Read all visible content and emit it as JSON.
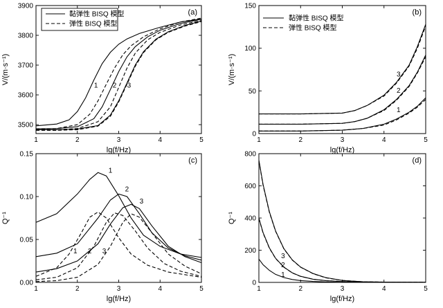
{
  "figure": {
    "width_note": "four-panel figure",
    "panels": [
      "a",
      "b",
      "c",
      "d"
    ]
  },
  "legend": {
    "viscoelastic": "黏弹性 BISQ 模型",
    "elastic": "弹性 BISQ 模型"
  },
  "chart_data": [
    {
      "id": "a",
      "type": "line",
      "panel_label": "(a)",
      "xlabel": "lg(f/Hz)",
      "ylabel": "V/(m·s⁻¹)",
      "xlim": [
        1,
        5
      ],
      "ylim": [
        3470,
        3900
      ],
      "xticks": [
        1,
        2,
        3,
        4,
        5
      ],
      "yticks": [
        3500,
        3600,
        3700,
        3800,
        3900
      ],
      "legend_position": "top-left",
      "curve_labels": [
        {
          "text": "1",
          "x": 2.45,
          "y": 3625
        },
        {
          "text": "2",
          "x": 2.9,
          "y": 3625
        },
        {
          "text": "3",
          "x": 3.25,
          "y": 3625
        }
      ],
      "series": [
        {
          "name": "黏弹性 BISQ 模型",
          "curve": "1",
          "style": "solid",
          "x": [
            1,
            1.5,
            1.8,
            2.0,
            2.2,
            2.4,
            2.6,
            2.8,
            3.0,
            3.2,
            3.5,
            4.0,
            4.5,
            5.0
          ],
          "y": [
            3496,
            3502,
            3516,
            3544,
            3590,
            3650,
            3705,
            3743,
            3770,
            3788,
            3806,
            3827,
            3845,
            3855
          ]
        },
        {
          "name": "弹性 BISQ 模型",
          "curve": "1",
          "style": "dashed",
          "x": [
            1,
            1.5,
            2.0,
            2.3,
            2.5,
            2.7,
            2.9,
            3.1,
            3.3,
            3.6,
            4.0,
            4.5,
            5.0
          ],
          "y": [
            3484,
            3487,
            3500,
            3535,
            3580,
            3636,
            3690,
            3735,
            3765,
            3795,
            3822,
            3845,
            3858
          ]
        },
        {
          "name": "黏弹性 BISQ 模型",
          "curve": "2",
          "style": "solid",
          "x": [
            1,
            1.5,
            2.0,
            2.4,
            2.6,
            2.8,
            3.0,
            3.2,
            3.4,
            3.7,
            4.0,
            4.5,
            5.0
          ],
          "y": [
            3486,
            3487,
            3493,
            3520,
            3560,
            3618,
            3678,
            3728,
            3762,
            3795,
            3817,
            3840,
            3854
          ]
        },
        {
          "name": "弹性 BISQ 模型",
          "curve": "2",
          "style": "dashed",
          "x": [
            1,
            1.5,
            2.0,
            2.5,
            2.8,
            3.0,
            3.2,
            3.4,
            3.7,
            4.0,
            4.5,
            5.0
          ],
          "y": [
            3482,
            3483,
            3487,
            3510,
            3560,
            3625,
            3690,
            3740,
            3785,
            3810,
            3835,
            3850
          ]
        },
        {
          "name": "黏弹性 BISQ 模型",
          "curve": "3",
          "style": "solid",
          "x": [
            1,
            1.5,
            2.0,
            2.5,
            2.8,
            3.0,
            3.2,
            3.4,
            3.6,
            3.9,
            4.2,
            4.6,
            5.0
          ],
          "y": [
            3483,
            3483,
            3485,
            3497,
            3532,
            3580,
            3640,
            3700,
            3745,
            3787,
            3812,
            3833,
            3848
          ]
        },
        {
          "name": "弹性 BISQ 模型",
          "curve": "3",
          "style": "dashed",
          "x": [
            1,
            1.5,
            2.0,
            2.5,
            2.8,
            3.0,
            3.2,
            3.4,
            3.6,
            3.9,
            4.2,
            4.6,
            5.0
          ],
          "y": [
            3481,
            3481,
            3483,
            3495,
            3528,
            3576,
            3636,
            3696,
            3742,
            3785,
            3810,
            3831,
            3846
          ]
        }
      ]
    },
    {
      "id": "b",
      "type": "line",
      "panel_label": "(b)",
      "xlabel": "lg(f/Hz)",
      "ylabel": "V/(m·s⁻¹)",
      "xlim": [
        1,
        5
      ],
      "ylim": [
        0,
        150
      ],
      "xticks": [
        1,
        2,
        3,
        4,
        5
      ],
      "yticks": [
        0,
        50,
        100,
        150
      ],
      "legend_position": "top-left",
      "curve_labels": [
        {
          "text": "1",
          "x": 4.35,
          "y": 25
        },
        {
          "text": "2",
          "x": 4.35,
          "y": 48
        },
        {
          "text": "3",
          "x": 4.35,
          "y": 67
        }
      ],
      "series": [
        {
          "name": "黏弹性 BISQ 模型",
          "curve": "1",
          "style": "solid",
          "x": [
            1,
            2,
            3,
            3.5,
            4.0,
            4.3,
            4.6,
            4.8,
            5.0
          ],
          "y": [
            3,
            3,
            4,
            6,
            11,
            17,
            25,
            32,
            42
          ]
        },
        {
          "name": "弹性 BISQ 模型",
          "curve": "1",
          "style": "dashed",
          "x": [
            1,
            2,
            3,
            3.5,
            4.0,
            4.3,
            4.6,
            4.8,
            5.0
          ],
          "y": [
            3,
            3,
            4,
            6,
            10,
            16,
            24,
            31,
            40
          ]
        },
        {
          "name": "黏弹性 BISQ 模型",
          "curve": "2",
          "style": "solid",
          "x": [
            1,
            2,
            3,
            3.3,
            3.6,
            4.0,
            4.3,
            4.6,
            4.8,
            5.0
          ],
          "y": [
            11,
            11,
            12,
            14,
            18,
            28,
            40,
            56,
            72,
            92
          ]
        },
        {
          "name": "弹性 BISQ 模型",
          "curve": "2",
          "style": "dashed",
          "x": [
            1,
            2,
            3,
            3.3,
            3.6,
            4.0,
            4.3,
            4.6,
            4.8,
            5.0
          ],
          "y": [
            11,
            11,
            12,
            14,
            18,
            27,
            39,
            55,
            71,
            90
          ]
        },
        {
          "name": "黏弹性 BISQ 模型",
          "curve": "3",
          "style": "solid",
          "x": [
            1,
            2,
            3,
            3.3,
            3.6,
            4.0,
            4.3,
            4.6,
            4.8,
            5.0
          ],
          "y": [
            23,
            23,
            24,
            27,
            33,
            45,
            60,
            80,
            102,
            128
          ]
        },
        {
          "name": "弹性 BISQ 模型",
          "curve": "3",
          "style": "dashed",
          "x": [
            1,
            2,
            3,
            3.3,
            3.6,
            4.0,
            4.3,
            4.6,
            4.8,
            5.0
          ],
          "y": [
            23,
            23,
            24,
            27,
            33,
            44,
            59,
            79,
            100,
            126
          ]
        }
      ]
    },
    {
      "id": "c",
      "type": "line",
      "panel_label": "(c)",
      "xlabel": "lg(f/Hz)",
      "ylabel": "Q⁻¹",
      "xlim": [
        1,
        5
      ],
      "ylim": [
        0,
        0.15
      ],
      "xticks": [
        1,
        2,
        3,
        4,
        5
      ],
      "yticks": [
        0.0,
        0.05,
        0.1,
        0.15
      ],
      "ytick_labels": [
        "0.00",
        "0.05",
        "0.10",
        "0.15"
      ],
      "curve_labels": [
        {
          "text": "1",
          "x": 2.8,
          "y": 0.128
        },
        {
          "text": "2",
          "x": 3.2,
          "y": 0.106
        },
        {
          "text": "3",
          "x": 3.55,
          "y": 0.092
        },
        {
          "text": "1",
          "x": 1.95,
          "y": 0.034
        },
        {
          "text": "2",
          "x": 2.3,
          "y": 0.034
        },
        {
          "text": "3",
          "x": 2.65,
          "y": 0.034
        }
      ],
      "series": [
        {
          "name": "黏弹性 BISQ 模型",
          "curve": "1",
          "style": "solid",
          "x": [
            1,
            1.5,
            2.0,
            2.3,
            2.5,
            2.7,
            3.0,
            3.3,
            3.6,
            4.0,
            4.5,
            5.0
          ],
          "y": [
            0.07,
            0.08,
            0.103,
            0.12,
            0.128,
            0.124,
            0.101,
            0.075,
            0.055,
            0.042,
            0.033,
            0.029
          ]
        },
        {
          "name": "黏弹性 BISQ 模型",
          "curve": "2",
          "style": "solid",
          "x": [
            1,
            1.5,
            2.0,
            2.5,
            2.8,
            3.0,
            3.2,
            3.5,
            3.8,
            4.2,
            4.6,
            5.0
          ],
          "y": [
            0.03,
            0.034,
            0.045,
            0.075,
            0.096,
            0.103,
            0.1,
            0.08,
            0.058,
            0.04,
            0.031,
            0.026
          ]
        },
        {
          "name": "黏弹性 BISQ 模型",
          "curve": "3",
          "style": "solid",
          "x": [
            1,
            1.5,
            2.0,
            2.5,
            2.8,
            3.1,
            3.3,
            3.5,
            3.8,
            4.2,
            4.6,
            5.0
          ],
          "y": [
            0.012,
            0.016,
            0.025,
            0.045,
            0.068,
            0.087,
            0.091,
            0.086,
            0.066,
            0.042,
            0.03,
            0.023
          ]
        },
        {
          "name": "弹性 BISQ 模型",
          "curve": "1",
          "style": "dashed",
          "x": [
            1,
            1.5,
            1.8,
            2.1,
            2.3,
            2.5,
            2.7,
            3.0,
            3.3,
            3.7,
            4.2,
            5.0
          ],
          "y": [
            0.007,
            0.017,
            0.033,
            0.058,
            0.076,
            0.082,
            0.075,
            0.052,
            0.033,
            0.02,
            0.012,
            0.006
          ]
        },
        {
          "name": "弹性 BISQ 模型",
          "curve": "2",
          "style": "dashed",
          "x": [
            1,
            1.5,
            2.0,
            2.4,
            2.7,
            2.9,
            3.1,
            3.4,
            3.7,
            4.1,
            4.5,
            5.0
          ],
          "y": [
            0.003,
            0.006,
            0.017,
            0.042,
            0.07,
            0.081,
            0.078,
            0.06,
            0.04,
            0.022,
            0.013,
            0.007
          ]
        },
        {
          "name": "弹性 BISQ 模型",
          "curve": "3",
          "style": "dashed",
          "x": [
            1,
            1.5,
            2.0,
            2.5,
            2.8,
            3.1,
            3.3,
            3.5,
            3.8,
            4.2,
            4.6,
            5.0
          ],
          "y": [
            0.001,
            0.002,
            0.006,
            0.021,
            0.042,
            0.07,
            0.08,
            0.076,
            0.058,
            0.033,
            0.019,
            0.01
          ]
        }
      ]
    },
    {
      "id": "d",
      "type": "line",
      "panel_label": "(d)",
      "xlabel": "lg(f/Hz)",
      "ylabel": "Q⁻¹",
      "xlim": [
        1,
        5
      ],
      "ylim": [
        0,
        800
      ],
      "xticks": [
        1,
        2,
        3,
        4,
        5
      ],
      "yticks": [
        0,
        200,
        400,
        600,
        800
      ],
      "curve_labels": [
        {
          "text": "3",
          "x": 1.58,
          "y": 150
        },
        {
          "text": "2",
          "x": 1.58,
          "y": 95
        },
        {
          "text": "1",
          "x": 1.58,
          "y": 35
        }
      ],
      "series": [
        {
          "name": "黏弹性 BISQ 模型",
          "curve": "3",
          "style": "solid",
          "x": [
            1.0,
            1.1,
            1.25,
            1.4,
            1.6,
            1.8,
            2.0,
            2.3,
            2.6,
            3.0,
            3.5,
            4.0,
            5.0
          ],
          "y": [
            760,
            610,
            440,
            320,
            210,
            140,
            95,
            55,
            30,
            12,
            4,
            2,
            1
          ]
        },
        {
          "name": "黏弹性 BISQ 模型",
          "curve": "2",
          "style": "solid",
          "x": [
            1.0,
            1.1,
            1.25,
            1.4,
            1.6,
            1.8,
            2.0,
            2.3,
            2.6,
            3.0,
            3.5,
            4.0,
            5.0
          ],
          "y": [
            400,
            310,
            215,
            150,
            95,
            60,
            38,
            20,
            11,
            5,
            2,
            1,
            1
          ]
        },
        {
          "name": "黏弹性 BISQ 模型",
          "curve": "1",
          "style": "solid",
          "x": [
            1.0,
            1.1,
            1.25,
            1.4,
            1.6,
            1.8,
            2.0,
            2.3,
            2.6,
            3.0,
            3.5,
            4.0,
            5.0
          ],
          "y": [
            145,
            110,
            75,
            50,
            30,
            18,
            11,
            6,
            3,
            1,
            1,
            0,
            0
          ]
        },
        {
          "name": "弹性 BISQ 模型",
          "curve": "3",
          "style": "dashed",
          "x": [
            1.0,
            1.1,
            1.25,
            1.4,
            1.6,
            1.8,
            2.0,
            2.3,
            2.6,
            3.0,
            3.5,
            4.0,
            5.0
          ],
          "y": [
            755,
            605,
            436,
            318,
            208,
            139,
            94,
            54,
            29,
            12,
            4,
            2,
            1
          ]
        },
        {
          "name": "弹性 BISQ 模型",
          "curve": "2",
          "style": "dashed",
          "x": [
            1.0,
            1.1,
            1.25,
            1.4,
            1.6,
            1.8,
            2.0,
            2.3,
            2.6,
            3.0,
            3.5,
            4.0,
            5.0
          ],
          "y": [
            397,
            307,
            213,
            149,
            94,
            59,
            37,
            20,
            11,
            5,
            2,
            1,
            1
          ]
        }
      ]
    }
  ]
}
